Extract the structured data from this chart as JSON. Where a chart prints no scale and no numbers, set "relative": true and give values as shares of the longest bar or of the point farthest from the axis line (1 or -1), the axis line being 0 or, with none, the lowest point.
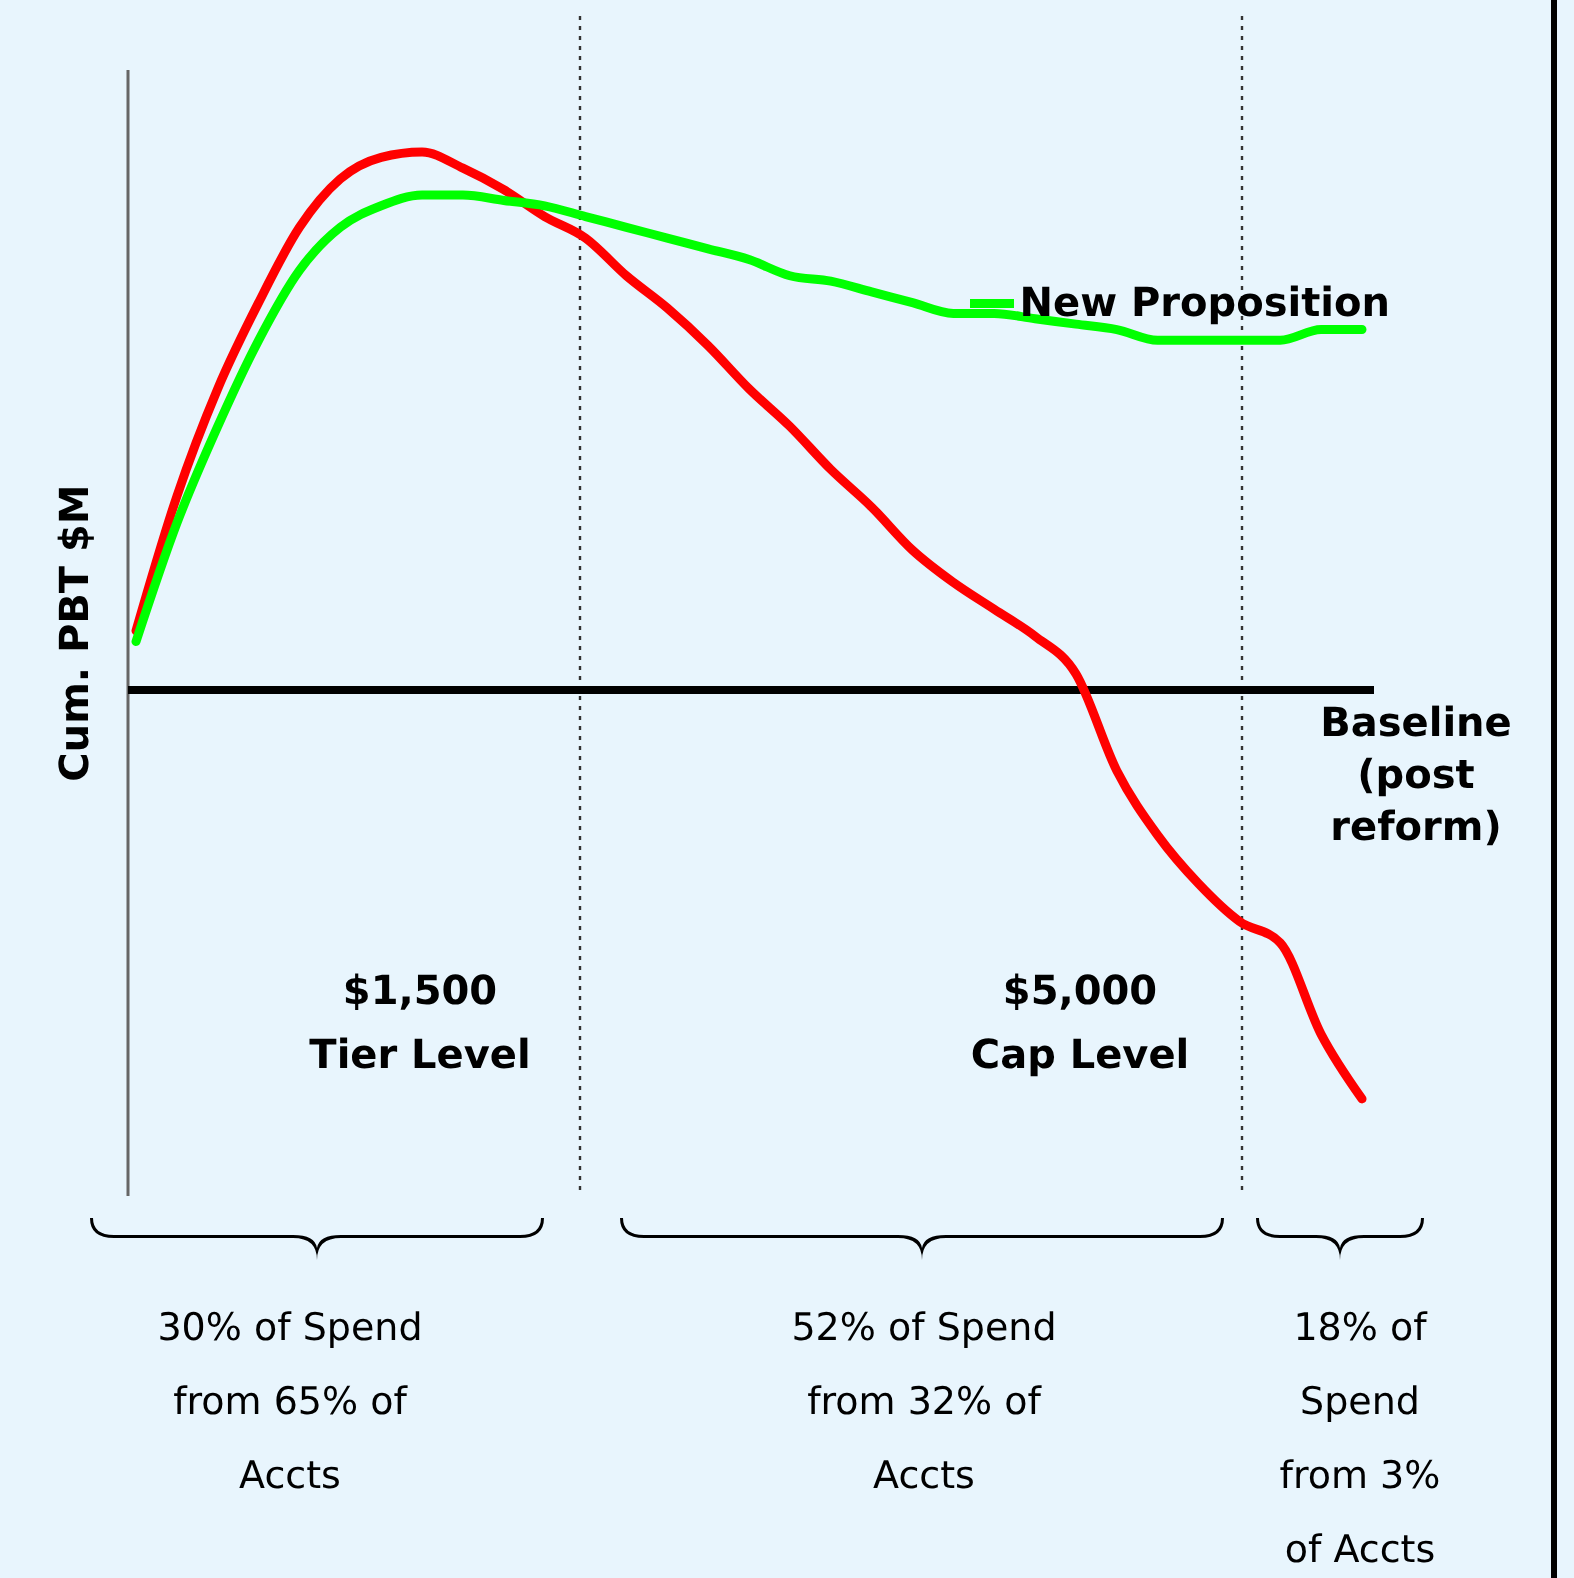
{
  "chart_data": {
    "type": "line",
    "relative": true,
    "ylabel": "Cum. PBT $M",
    "line_style": "solid",
    "categories": [
      null,
      null,
      null,
      null,
      null,
      null,
      null,
      null,
      null,
      null,
      null,
      null,
      null,
      null,
      null,
      null,
      null,
      null,
      null,
      null,
      null,
      null,
      null,
      null,
      null,
      null,
      null,
      null,
      null,
      null,
      null
    ],
    "series": [
      {
        "color": "#ff0000",
        "values": [
          0.11,
          0.36,
          0.56,
          0.72,
          0.86,
          0.95,
          0.99,
          1,
          0.97,
          0.93,
          0.88,
          0.84,
          0.77,
          0.71,
          0.64,
          0.56,
          0.49,
          0.41,
          0.34,
          0.26,
          0.2,
          0.15,
          0.1,
          0.03,
          -0.15,
          -0.27,
          -0.36,
          -0.43,
          -0.47,
          -0.64,
          -0.76
        ]
      },
      {
        "name": "New Proposition",
        "color": "#00ff00",
        "values": [
          0.09,
          0.31,
          0.49,
          0.65,
          0.78,
          0.86,
          0.9,
          0.92,
          0.92,
          0.91,
          0.9,
          0.88,
          0.86,
          0.84,
          0.82,
          0.8,
          0.77,
          0.76,
          0.74,
          0.72,
          0.7,
          0.7,
          0.69,
          0.68,
          0.67,
          0.65,
          0.65,
          0.65,
          0.65,
          0.67,
          0.67
        ]
      }
    ],
    "ref_lines": [
      {
        "axis": "y",
        "value": 0,
        "label": "Baseline\n(post\nreform)",
        "color": "#000000",
        "line_style": "solid"
      }
    ],
    "annotations": [
      "$1,500\nTier Level",
      "$5,000\nCap Level",
      "30% of Spend\nfrom 65% of\nAccts",
      "52% of Spend\nfrom 32% of\nAccts",
      "18% of\nSpend\nfrom 3%\nof Accts"
    ]
  }
}
